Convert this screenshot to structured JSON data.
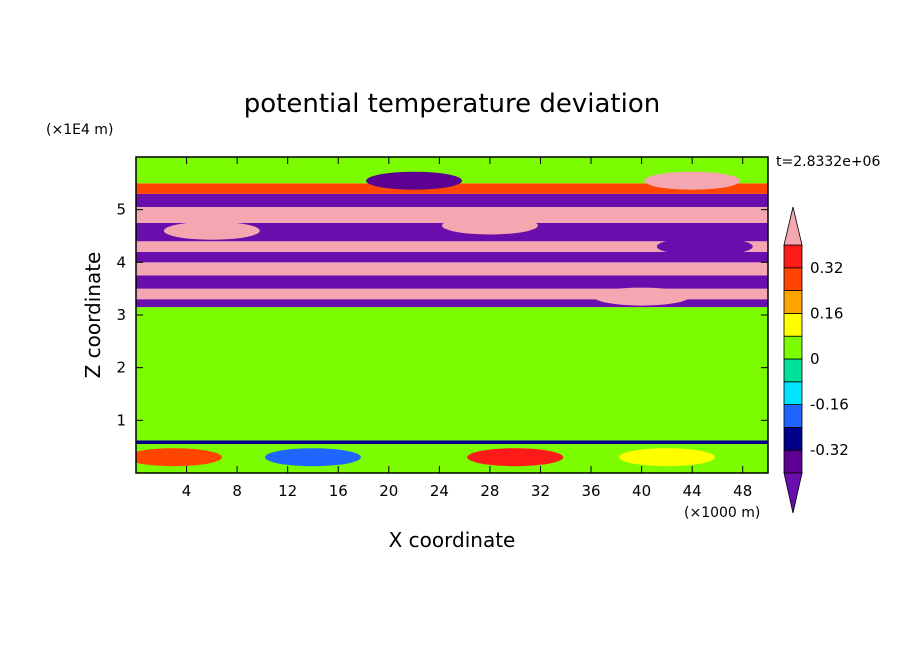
{
  "chart_data": {
    "type": "heatmap",
    "title": "potential temperature deviation",
    "xlabel": "X coordinate",
    "ylabel": "Z coordinate",
    "x_unit": "(×1000 m)",
    "y_unit": "(×1E4 m)",
    "time_label": "t=2.8332e+06",
    "xlim": [
      0,
      50
    ],
    "ylim": [
      0,
      6
    ],
    "x_ticks": [
      "4",
      "8",
      "12",
      "16",
      "20",
      "24",
      "28",
      "32",
      "36",
      "40",
      "44",
      "48"
    ],
    "x_tick_values": [
      4,
      8,
      12,
      16,
      20,
      24,
      28,
      32,
      36,
      40,
      44,
      48
    ],
    "y_ticks": [
      "1",
      "2",
      "3",
      "4",
      "5"
    ],
    "y_tick_values": [
      1,
      2,
      3,
      4,
      5
    ],
    "colorbar": {
      "levels": [
        -0.4,
        -0.32,
        -0.24,
        -0.16,
        -0.08,
        0,
        0.08,
        0.16,
        0.24,
        0.32,
        0.4
      ],
      "tick_labels": [
        "0.32",
        "0.16",
        "0",
        "-0.16",
        "-0.32"
      ],
      "tick_values": [
        0.32,
        0.16,
        0,
        -0.16,
        -0.32
      ],
      "colors_low_to_high": [
        "#6a0dad",
        "#5b0090",
        "#00008b",
        "#1e66ff",
        "#00e5ff",
        "#00e29a",
        "#7cfc00",
        "#ffff00",
        "#ffa500",
        "#ff4500",
        "#ff1a1a",
        "#f4a7b0"
      ],
      "extend": "both"
    },
    "layers": [
      {
        "z_min": 0.0,
        "z_max": 0.55,
        "value": 0.02
      },
      {
        "z_min": 0.55,
        "z_max": 0.62,
        "value": -0.3
      },
      {
        "z_min": 0.62,
        "z_max": 3.15,
        "value": 0.03
      },
      {
        "z_min": 3.15,
        "z_max": 3.3,
        "value": -0.45
      },
      {
        "z_min": 3.3,
        "z_max": 3.5,
        "value": 0.45
      },
      {
        "z_min": 3.5,
        "z_max": 3.75,
        "value": -0.45
      },
      {
        "z_min": 3.75,
        "z_max": 4.0,
        "value": 0.45
      },
      {
        "z_min": 4.0,
        "z_max": 4.2,
        "value": -0.45
      },
      {
        "z_min": 4.2,
        "z_max": 4.4,
        "value": 0.45
      },
      {
        "z_min": 4.4,
        "z_max": 4.75,
        "value": -0.45
      },
      {
        "z_min": 4.75,
        "z_max": 5.05,
        "value": 0.45
      },
      {
        "z_min": 5.05,
        "z_max": 5.3,
        "value": -0.45
      },
      {
        "z_min": 5.3,
        "z_max": 5.5,
        "value": 0.3
      },
      {
        "z_min": 5.5,
        "z_max": 6.0,
        "value": 0.05
      }
    ],
    "features": [
      {
        "x": 3,
        "z": 0.3,
        "value": 0.3
      },
      {
        "x": 14,
        "z": 0.3,
        "value": -0.2
      },
      {
        "x": 30,
        "z": 0.3,
        "value": 0.35
      },
      {
        "x": 42,
        "z": 0.3,
        "value": 0.15
      },
      {
        "x": 22,
        "z": 5.55,
        "value": -0.35
      },
      {
        "x": 44,
        "z": 5.55,
        "value": 0.45
      },
      {
        "x": 28,
        "z": 4.7,
        "value": 0.45
      },
      {
        "x": 6,
        "z": 4.6,
        "value": 0.45
      },
      {
        "x": 45,
        "z": 4.3,
        "value": -0.45
      },
      {
        "x": 40,
        "z": 3.35,
        "value": 0.45
      }
    ]
  }
}
